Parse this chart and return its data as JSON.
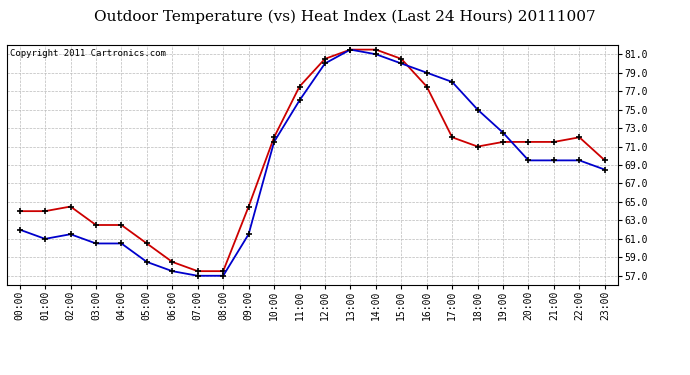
{
  "title": "Outdoor Temperature (vs) Heat Index (Last 24 Hours) 20111007",
  "copyright": "Copyright 2011 Cartronics.com",
  "hours": [
    "00:00",
    "01:00",
    "02:00",
    "03:00",
    "04:00",
    "05:00",
    "06:00",
    "07:00",
    "08:00",
    "09:00",
    "10:00",
    "11:00",
    "12:00",
    "13:00",
    "14:00",
    "15:00",
    "16:00",
    "17:00",
    "18:00",
    "19:00",
    "20:00",
    "21:00",
    "22:00",
    "23:00"
  ],
  "outdoor_temp": [
    62.0,
    61.0,
    61.5,
    60.5,
    60.5,
    58.5,
    57.5,
    57.0,
    57.0,
    61.5,
    71.5,
    76.0,
    80.0,
    81.5,
    81.0,
    80.0,
    79.0,
    78.0,
    75.0,
    72.5,
    69.5,
    69.5,
    69.5,
    68.5
  ],
  "heat_index": [
    64.0,
    64.0,
    64.5,
    62.5,
    62.5,
    60.5,
    58.5,
    57.5,
    57.5,
    64.5,
    72.0,
    77.5,
    80.5,
    81.5,
    81.5,
    80.5,
    77.5,
    72.0,
    71.0,
    71.5,
    71.5,
    71.5,
    72.0,
    69.5
  ],
  "temp_color": "#0000cc",
  "heat_color": "#cc0000",
  "bg_color": "#ffffff",
  "grid_color": "#bbbbbb",
  "ylim": [
    56.0,
    82.0
  ],
  "yticks": [
    57.0,
    59.0,
    61.0,
    63.0,
    65.0,
    67.0,
    69.0,
    71.0,
    73.0,
    75.0,
    77.0,
    79.0,
    81.0
  ],
  "title_fontsize": 11,
  "copyright_fontsize": 6.5,
  "tick_fontsize": 7,
  "marker_size": 4,
  "linewidth": 1.3
}
